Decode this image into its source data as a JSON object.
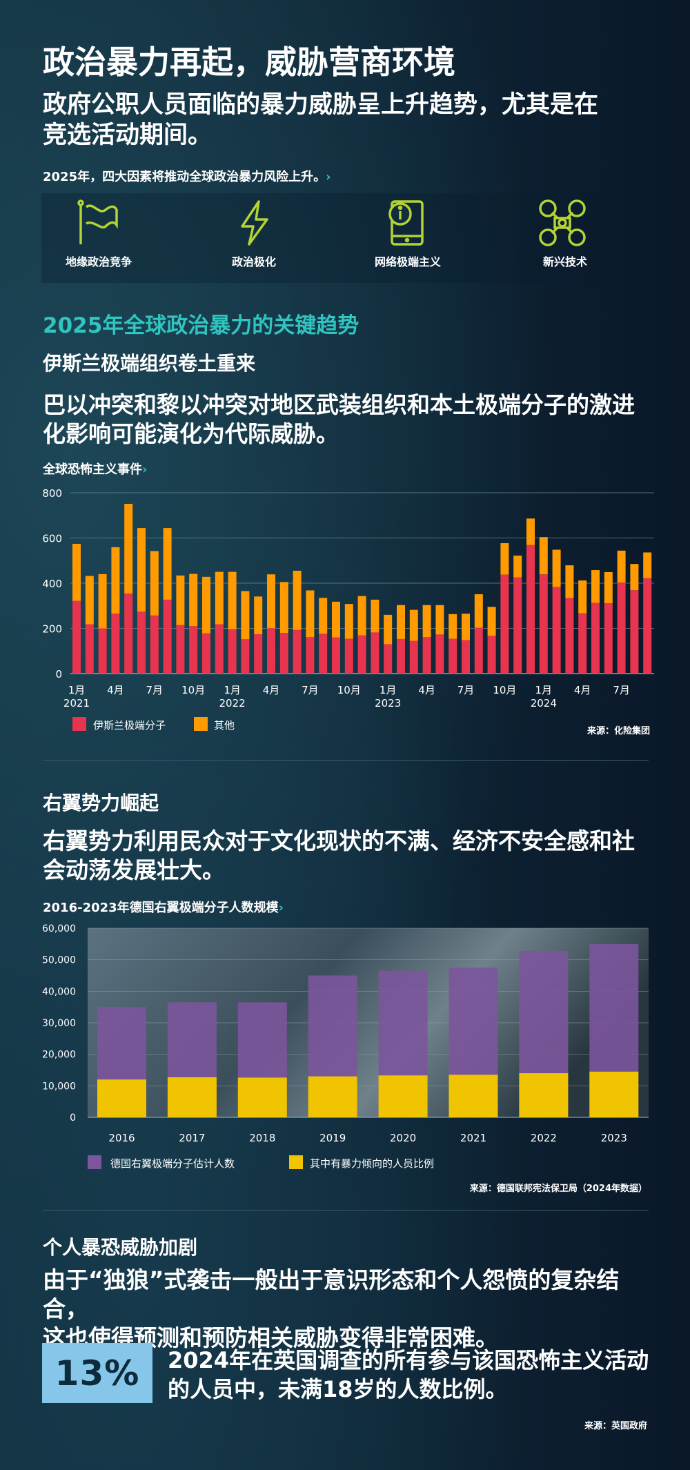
{
  "header": {
    "title": "政治暴力再起，威胁营商环境",
    "subtitle_lines": [
      "政府公职人员面临的暴力威胁呈上升趋势，尤其是在",
      "竞选活动期间。"
    ]
  },
  "factors": {
    "heading": "2025年，四大因素将推动全球政治暴力风险上升。",
    "chevron": "›",
    "icon_color": "#b5d334",
    "items": [
      {
        "label": "地缘政治竞争",
        "icon": "flag-icon"
      },
      {
        "label": "政治极化",
        "icon": "lightning-icon"
      },
      {
        "label": "网络极端主义",
        "icon": "phone-alert-icon"
      },
      {
        "label": "新兴技术",
        "icon": "drone-icon"
      }
    ]
  },
  "trends": {
    "heading": "2025年全球政治暴力的关键趋势"
  },
  "islamist": {
    "heading": "伊斯兰极端组织卷土重来",
    "body_lines": [
      "巴以冲突和黎以冲突对地区武装组织和本土极端分子的激进",
      "化影响可能演化为代际威胁。"
    ],
    "source": "来源：化险集团"
  },
  "rightwing": {
    "heading": "右翼势力崛起",
    "body_lines": [
      "右翼势力利用民众对于文化现状的不满、经济不安全感和社",
      "会动荡发展壮大。"
    ],
    "source": "来源：德国联邦宪法保卫局（2024年数据）"
  },
  "lonewolf": {
    "heading": "个人暴恐威胁加剧",
    "body_lines": [
      "由于“独狼”式袭击一般出于意识形态和个人怨愤的复杂结合，",
      "这也使得预测和预防相关威胁变得非常困难。"
    ],
    "stat_value": "13%",
    "stat_lines": [
      "2024年在英国调查的所有参与该国恐怖主义活动",
      "的人员中，未满18岁的人数比例。"
    ],
    "stat_color": "#86c7e9",
    "source": "来源：英国政府"
  },
  "chart_data": [
    {
      "type": "bar",
      "stacked": true,
      "title": "全球恐怖主义事件",
      "ylim": [
        0,
        800
      ],
      "yticks": [
        0,
        200,
        400,
        600,
        800
      ],
      "grid": true,
      "legend": "bottom-left",
      "x_tick_labels": [
        {
          "i": 0,
          "label": "1月",
          "year": "2021"
        },
        {
          "i": 3,
          "label": "4月"
        },
        {
          "i": 6,
          "label": "7月"
        },
        {
          "i": 9,
          "label": "10月"
        },
        {
          "i": 12,
          "label": "1月",
          "year": "2022"
        },
        {
          "i": 15,
          "label": "4月"
        },
        {
          "i": 18,
          "label": "7月"
        },
        {
          "i": 21,
          "label": "10月"
        },
        {
          "i": 24,
          "label": "1月",
          "year": "2023"
        },
        {
          "i": 27,
          "label": "4月"
        },
        {
          "i": 30,
          "label": "7月"
        },
        {
          "i": 33,
          "label": "10月"
        },
        {
          "i": 36,
          "label": "1月",
          "year": "2024"
        },
        {
          "i": 39,
          "label": "4月"
        },
        {
          "i": 42,
          "label": "7月"
        }
      ],
      "categories": [
        "2021-01",
        "2021-02",
        "2021-03",
        "2021-04",
        "2021-05",
        "2021-06",
        "2021-07",
        "2021-08",
        "2021-09",
        "2021-10",
        "2021-11",
        "2021-12",
        "2022-01",
        "2022-02",
        "2022-03",
        "2022-04",
        "2022-05",
        "2022-06",
        "2022-07",
        "2022-08",
        "2022-09",
        "2022-10",
        "2022-11",
        "2022-12",
        "2023-01",
        "2023-02",
        "2023-03",
        "2023-04",
        "2023-05",
        "2023-06",
        "2023-07",
        "2023-08",
        "2023-09",
        "2023-10",
        "2023-11",
        "2023-12",
        "2024-01",
        "2024-02",
        "2024-03",
        "2024-04",
        "2024-05",
        "2024-06",
        "2024-07",
        "2024-08",
        "2024-09"
      ],
      "series": [
        {
          "name": "伊斯兰极端分子",
          "color": "#e8344e",
          "values": [
            322,
            218,
            200,
            265,
            354,
            274,
            257,
            327,
            215,
            210,
            178,
            218,
            196,
            152,
            174,
            201,
            180,
            193,
            161,
            176,
            160,
            154,
            169,
            182,
            130,
            153,
            145,
            161,
            173,
            154,
            148,
            203,
            167,
            438,
            426,
            569,
            439,
            383,
            334,
            267,
            313,
            311,
            403,
            369,
            422
          ]
        },
        {
          "name": "其他",
          "color": "#ff9a00",
          "values": [
            252,
            214,
            240,
            294,
            397,
            370,
            285,
            317,
            219,
            231,
            250,
            232,
            254,
            213,
            167,
            238,
            225,
            262,
            207,
            159,
            158,
            154,
            174,
            145,
            130,
            150,
            137,
            142,
            130,
            109,
            117,
            148,
            128,
            139,
            96,
            117,
            165,
            165,
            145,
            145,
            145,
            138,
            141,
            116,
            114
          ]
        }
      ]
    },
    {
      "type": "bar",
      "stacked": false,
      "overlay": true,
      "title": "2016-2023年德国右翼极端分子人数规模",
      "ylim": [
        0,
        60000
      ],
      "yticks": [
        "0",
        "10,000",
        "20,000",
        "30,000",
        "40,000",
        "50,000",
        "60,000"
      ],
      "grid": true,
      "legend": "bottom-left",
      "categories": [
        "2016",
        "2017",
        "2018",
        "2019",
        "2020",
        "2021",
        "2022",
        "2023"
      ],
      "series": [
        {
          "name": "德国右翼极端分子估计人数",
          "color": "#7c559c",
          "values": [
            35000,
            36500,
            36500,
            45000,
            46500,
            47500,
            52800,
            55000
          ]
        },
        {
          "name": "其中有暴力倾向的人员比例",
          "color": "#f0c400",
          "values": [
            12000,
            12700,
            12600,
            13000,
            13300,
            13500,
            14000,
            14500
          ]
        }
      ]
    }
  ]
}
